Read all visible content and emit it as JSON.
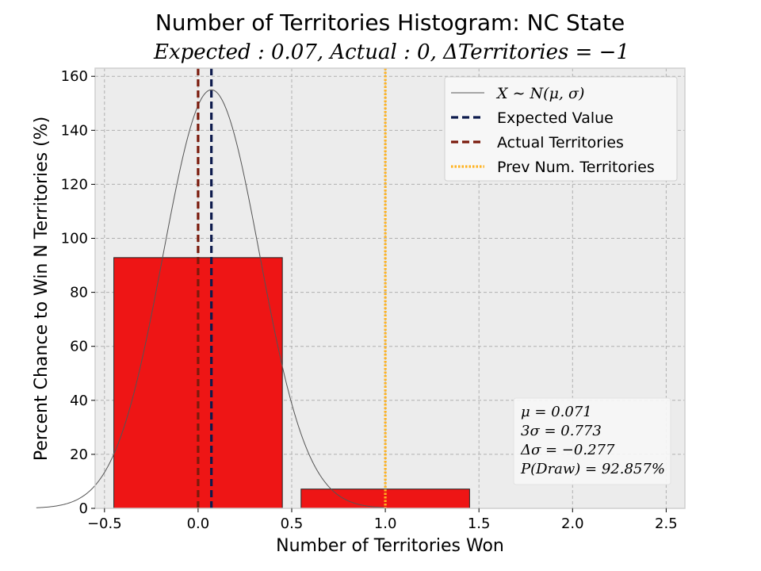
{
  "chart_data": {
    "type": "bar",
    "title": "Number of Territories Histogram: NC State",
    "subtitle": "Expected : 0.07, Actual : 0, ΔTerritories = −1",
    "xlabel": "Number of Territories Won",
    "ylabel": "Percent Chance to Win N Territories (%)",
    "xlim": [
      -0.55,
      2.6
    ],
    "ylim": [
      0,
      163
    ],
    "xticks": [
      -0.5,
      0.0,
      0.5,
      1.0,
      1.5,
      2.0,
      2.5
    ],
    "xtick_labels": [
      "−0.5",
      "0.0",
      "0.5",
      "1.0",
      "1.5",
      "2.0",
      "2.5"
    ],
    "yticks": [
      0,
      20,
      40,
      60,
      80,
      100,
      120,
      140,
      160
    ],
    "ytick_labels": [
      "0",
      "20",
      "40",
      "60",
      "80",
      "100",
      "120",
      "140",
      "160"
    ],
    "grid": true,
    "bars": [
      {
        "x": 0,
        "value": 92.857,
        "width": 0.9
      },
      {
        "x": 1,
        "value": 7.143,
        "width": 0.9
      }
    ],
    "normal_curve": {
      "mu": 0.071,
      "sigma": 0.2577,
      "peak": 155
    },
    "vlines": [
      {
        "name": "Expected Value",
        "x": 0.071,
        "style": "dashed",
        "color": "#0d1b4d"
      },
      {
        "name": "Actual Territories",
        "x": 0,
        "style": "dashed",
        "color": "#7a1a0c"
      },
      {
        "name": "Prev Num. Territories",
        "x": 1,
        "style": "dotted",
        "color": "#ffb320"
      }
    ],
    "legend": {
      "placement": "top-right",
      "entries": [
        {
          "label": "X ∼ N(μ, σ)",
          "style": "thin-line",
          "color": "#555555"
        },
        {
          "label": "Expected Value",
          "style": "dashed",
          "color": "#0d1b4d"
        },
        {
          "label": "Actual Territories",
          "style": "dashed",
          "color": "#7a1a0c"
        },
        {
          "label": "Prev Num. Territories",
          "style": "dotted",
          "color": "#ffb320"
        }
      ]
    },
    "stats_box": [
      "μ = 0.071",
      "3σ = 0.773",
      "Δσ = −0.277",
      "P(Draw) = 92.857%"
    ],
    "colors": {
      "bar_fill": "#ee1515",
      "bar_edge": "#222222",
      "plot_background": "#ececec",
      "grid": "#b0b0b0",
      "curve": "#555555"
    }
  }
}
